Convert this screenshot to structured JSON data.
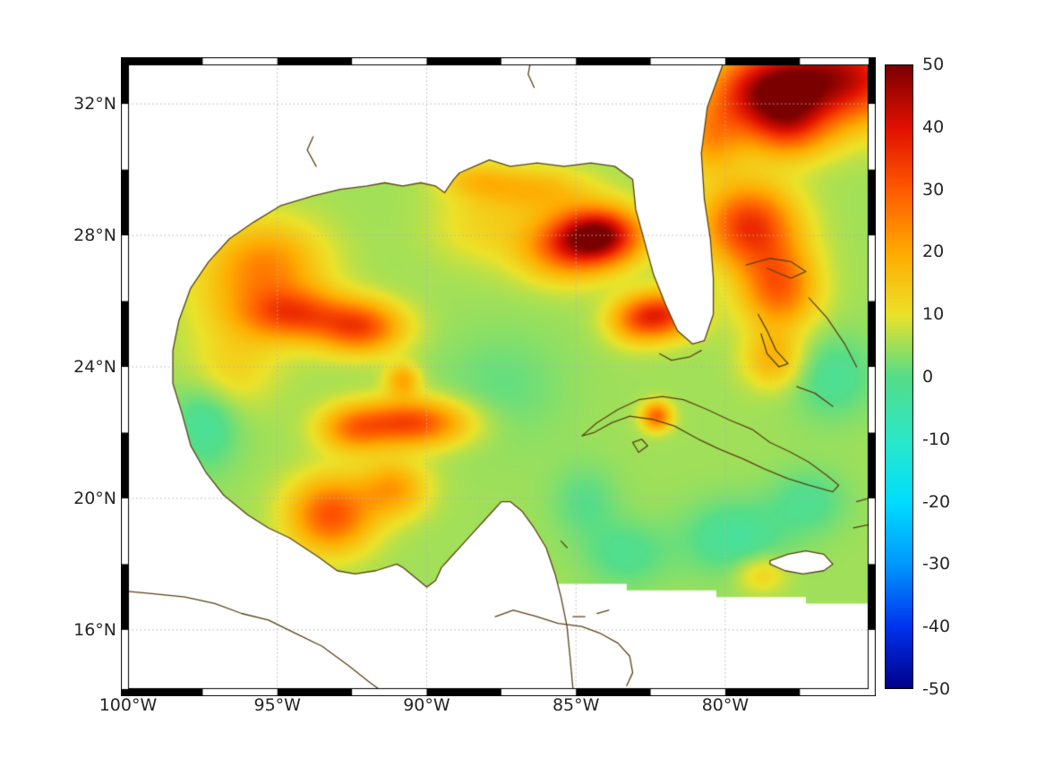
{
  "chart_data": {
    "type": "heatmap",
    "title": "",
    "xlabel": "",
    "ylabel": "",
    "lon_range": [
      -100,
      -75.2
    ],
    "lat_range": [
      14.2,
      33.2
    ],
    "grid": "dotted",
    "x_axis": {
      "ticks": [
        {
          "value": -100,
          "label": "100°W"
        },
        {
          "value": -95,
          "label": "95°W"
        },
        {
          "value": -90,
          "label": "90°W"
        },
        {
          "value": -85,
          "label": "85°W"
        },
        {
          "value": -80,
          "label": "80°W"
        }
      ]
    },
    "y_axis": {
      "ticks": [
        {
          "value": 32,
          "label": "32°N"
        },
        {
          "value": 28,
          "label": "28°N"
        },
        {
          "value": 24,
          "label": "24°N"
        },
        {
          "value": 20,
          "label": "20°N"
        },
        {
          "value": 16,
          "label": "16°N"
        }
      ]
    },
    "colorbar": {
      "min": -50,
      "max": 50,
      "ticks": [
        {
          "value": 50,
          "label": "50"
        },
        {
          "value": 40,
          "label": "40"
        },
        {
          "value": 30,
          "label": "30"
        },
        {
          "value": 20,
          "label": "20"
        },
        {
          "value": 10,
          "label": "10"
        },
        {
          "value": 0,
          "label": "0"
        },
        {
          "value": -10,
          "label": "-10"
        },
        {
          "value": -20,
          "label": "-20"
        },
        {
          "value": -30,
          "label": "-30"
        },
        {
          "value": -40,
          "label": "-40"
        },
        {
          "value": -50,
          "label": "-50"
        }
      ]
    },
    "colormap": {
      "stops": [
        [
          -50,
          "#000088"
        ],
        [
          -40,
          "#0033ee"
        ],
        [
          -30,
          "#0099ff"
        ],
        [
          -20,
          "#00ddff"
        ],
        [
          -10,
          "#2ce8c8"
        ],
        [
          0,
          "#55dd88"
        ],
        [
          10,
          "#ece229"
        ],
        [
          20,
          "#ffaa00"
        ],
        [
          30,
          "#ff5a00"
        ],
        [
          40,
          "#e01000"
        ],
        [
          50,
          "#7a0000"
        ]
      ]
    },
    "colors": {
      "coastline": "#5a4214",
      "grid": "#b4b4b4",
      "frame": "#000000",
      "background": "#ffffff",
      "tick_text": "#262626"
    },
    "base_value": 5,
    "blob_format": [
      "lon",
      "lat",
      "amplitude",
      "sigma_lon_deg",
      "sigma_lat_deg"
    ],
    "blobs": [
      [
        -76.4,
        32.8,
        40,
        2.0,
        1.0
      ],
      [
        -78.8,
        32.3,
        24,
        1.2,
        0.8
      ],
      [
        -77.9,
        31.3,
        20,
        1.0,
        0.7
      ],
      [
        -80.5,
        31.0,
        16,
        0.8,
        0.8
      ],
      [
        -84.2,
        28.0,
        40,
        1.0,
        0.6
      ],
      [
        -85.4,
        27.6,
        20,
        1.1,
        0.7
      ],
      [
        -79.2,
        28.3,
        30,
        1.1,
        0.9
      ],
      [
        -78.2,
        26.4,
        24,
        0.9,
        0.9
      ],
      [
        -82.0,
        25.6,
        26,
        0.8,
        0.5
      ],
      [
        -83.0,
        25.4,
        16,
        0.7,
        0.5
      ],
      [
        -94.4,
        25.6,
        22,
        1.2,
        0.55
      ],
      [
        -92.2,
        25.2,
        26,
        1.0,
        0.55
      ],
      [
        -90.8,
        23.6,
        15,
        0.4,
        0.35
      ],
      [
        -90.5,
        22.3,
        28,
        1.3,
        0.5
      ],
      [
        -92.5,
        22.1,
        16,
        0.8,
        0.5
      ],
      [
        -91.1,
        20.3,
        16,
        0.8,
        0.6
      ],
      [
        -93.2,
        19.5,
        26,
        1.0,
        0.8
      ],
      [
        -95.3,
        27.2,
        14,
        1.3,
        0.9
      ],
      [
        -95.9,
        26.1,
        9,
        1.5,
        1.2
      ],
      [
        -96.6,
        23.8,
        7,
        1.0,
        0.8
      ],
      [
        -86.3,
        29.4,
        12,
        1.3,
        0.5
      ],
      [
        -88.4,
        29.7,
        9,
        0.9,
        0.4
      ],
      [
        -88.1,
        28.3,
        7,
        1.2,
        0.8
      ],
      [
        -82.3,
        22.5,
        24,
        0.35,
        0.3
      ],
      [
        -78.4,
        24.2,
        13,
        0.7,
        0.6
      ],
      [
        -78.8,
        17.7,
        9,
        0.6,
        0.4
      ],
      [
        -97.4,
        22.3,
        -8,
        0.8,
        1.0
      ],
      [
        -79.7,
        18.8,
        -8,
        1.2,
        0.8
      ],
      [
        -83.3,
        18.3,
        -6,
        1.0,
        0.7
      ],
      [
        -77.2,
        19.9,
        -6,
        0.9,
        0.7
      ],
      [
        -76.4,
        23.7,
        -7,
        1.0,
        0.9
      ],
      [
        -87.5,
        23.4,
        -4,
        1.5,
        1.2
      ],
      [
        -84.7,
        19.9,
        -5,
        0.8,
        0.8
      ]
    ],
    "coastlines": [
      {
        "name": "gulf-coast",
        "points": [
          [
            -80.0,
            33.4
          ],
          [
            -80.6,
            31.9
          ],
          [
            -80.8,
            30.5
          ],
          [
            -80.7,
            29.1
          ],
          [
            -80.5,
            27.9
          ],
          [
            -80.4,
            26.7
          ],
          [
            -80.4,
            25.6
          ],
          [
            -80.7,
            24.8
          ],
          [
            -81.1,
            24.7
          ],
          [
            -81.6,
            25.1
          ],
          [
            -82.0,
            25.9
          ],
          [
            -82.4,
            26.8
          ],
          [
            -82.7,
            27.8
          ],
          [
            -83.0,
            28.8
          ],
          [
            -83.1,
            29.7
          ],
          [
            -83.7,
            30.1
          ],
          [
            -84.5,
            30.2
          ],
          [
            -85.4,
            30.1
          ],
          [
            -86.3,
            30.2
          ],
          [
            -87.2,
            30.1
          ],
          [
            -87.9,
            30.3
          ],
          [
            -88.4,
            30.1
          ],
          [
            -88.9,
            29.9
          ],
          [
            -89.1,
            29.7
          ],
          [
            -89.4,
            29.3
          ],
          [
            -89.7,
            29.5
          ],
          [
            -90.2,
            29.6
          ],
          [
            -90.8,
            29.5
          ],
          [
            -91.4,
            29.6
          ],
          [
            -92.0,
            29.5
          ],
          [
            -92.9,
            29.4
          ],
          [
            -93.8,
            29.2
          ],
          [
            -94.9,
            28.9
          ],
          [
            -95.8,
            28.4
          ],
          [
            -96.6,
            27.9
          ],
          [
            -97.3,
            27.2
          ],
          [
            -97.9,
            26.4
          ],
          [
            -98.3,
            25.4
          ],
          [
            -98.5,
            24.5
          ],
          [
            -98.5,
            23.5
          ],
          [
            -98.2,
            22.6
          ],
          [
            -97.9,
            21.6
          ],
          [
            -97.4,
            20.8
          ],
          [
            -96.8,
            20.1
          ],
          [
            -96.0,
            19.5
          ],
          [
            -95.3,
            19.1
          ],
          [
            -94.6,
            18.8
          ],
          [
            -94.1,
            18.5
          ],
          [
            -93.6,
            18.2
          ],
          [
            -93.0,
            17.8
          ],
          [
            -92.4,
            17.7
          ],
          [
            -91.7,
            17.8
          ],
          [
            -91.0,
            18.0
          ],
          [
            -90.8,
            17.9
          ],
          [
            -90.4,
            17.6
          ],
          [
            -90.0,
            17.3
          ],
          [
            -89.7,
            17.5
          ],
          [
            -89.5,
            17.9
          ],
          [
            -89.2,
            18.2
          ],
          [
            -88.8,
            18.6
          ],
          [
            -88.4,
            19.0
          ],
          [
            -88.0,
            19.4
          ],
          [
            -87.7,
            19.7
          ],
          [
            -87.5,
            19.9
          ],
          [
            -87.2,
            19.9
          ],
          [
            -86.8,
            19.6
          ],
          [
            -86.4,
            19.1
          ],
          [
            -86.0,
            18.5
          ],
          [
            -85.7,
            17.7
          ],
          [
            -85.5,
            17.0
          ],
          [
            -85.3,
            16.1
          ],
          [
            -85.2,
            15.2
          ],
          [
            -85.1,
            14.2
          ]
        ]
      },
      {
        "name": "cuba",
        "points": [
          [
            -84.8,
            21.9
          ],
          [
            -84.3,
            22.3
          ],
          [
            -83.6,
            22.7
          ],
          [
            -82.9,
            23.0
          ],
          [
            -82.1,
            23.1
          ],
          [
            -81.4,
            23.0
          ],
          [
            -80.6,
            22.7
          ],
          [
            -79.9,
            22.4
          ],
          [
            -79.1,
            22.1
          ],
          [
            -78.5,
            21.7
          ],
          [
            -77.8,
            21.4
          ],
          [
            -77.2,
            21.1
          ],
          [
            -76.6,
            20.7
          ],
          [
            -76.2,
            20.4
          ],
          [
            -76.4,
            20.2
          ],
          [
            -77.2,
            20.4
          ],
          [
            -77.9,
            20.6
          ],
          [
            -78.7,
            20.9
          ],
          [
            -79.4,
            21.2
          ],
          [
            -80.2,
            21.5
          ],
          [
            -80.9,
            21.8
          ],
          [
            -81.7,
            22.2
          ],
          [
            -82.4,
            22.4
          ],
          [
            -83.2,
            22.5
          ],
          [
            -83.8,
            22.3
          ],
          [
            -84.4,
            22.0
          ],
          [
            -84.8,
            21.9
          ]
        ]
      },
      {
        "name": "isle-of-youth",
        "points": [
          [
            -83.1,
            21.7
          ],
          [
            -82.8,
            21.8
          ],
          [
            -82.6,
            21.6
          ],
          [
            -82.9,
            21.4
          ],
          [
            -83.1,
            21.7
          ]
        ]
      },
      {
        "name": "bahamas-grand",
        "points": [
          [
            -79.3,
            27.1
          ],
          [
            -78.5,
            27.3
          ],
          [
            -77.8,
            27.2
          ],
          [
            -77.3,
            26.9
          ],
          [
            -77.8,
            26.7
          ],
          [
            -78.6,
            27.0
          ]
        ]
      },
      {
        "name": "bahamas-andros",
        "points": [
          [
            -78.9,
            25.6
          ],
          [
            -78.6,
            25.1
          ],
          [
            -78.3,
            24.5
          ],
          [
            -77.9,
            24.1
          ],
          [
            -78.2,
            24.0
          ],
          [
            -78.6,
            24.4
          ],
          [
            -78.8,
            25.0
          ]
        ]
      },
      {
        "name": "bahamas-east",
        "points": [
          [
            -77.2,
            26.1
          ],
          [
            -76.6,
            25.5
          ],
          [
            -76.0,
            24.7
          ],
          [
            -75.6,
            24.0
          ]
        ]
      },
      {
        "name": "bahamas-south",
        "points": [
          [
            -77.6,
            23.4
          ],
          [
            -77.0,
            23.2
          ],
          [
            -76.4,
            22.8
          ]
        ]
      },
      {
        "name": "hispaniola-tip",
        "points": [
          [
            -75.6,
            19.9
          ],
          [
            -75.2,
            20.0
          ],
          [
            -75.2,
            19.2
          ],
          [
            -75.7,
            19.1
          ]
        ]
      },
      {
        "name": "jamaica",
        "points": [
          [
            -78.5,
            18.1
          ],
          [
            -77.9,
            18.3
          ],
          [
            -77.3,
            18.4
          ],
          [
            -76.7,
            18.3
          ],
          [
            -76.4,
            18.0
          ],
          [
            -76.7,
            17.8
          ],
          [
            -77.4,
            17.7
          ],
          [
            -78.0,
            17.8
          ],
          [
            -78.5,
            18.0
          ],
          [
            -78.5,
            18.1
          ]
        ]
      },
      {
        "name": "honduras-coast",
        "points": [
          [
            -87.7,
            16.4
          ],
          [
            -87.1,
            16.6
          ],
          [
            -86.3,
            16.4
          ],
          [
            -85.6,
            16.2
          ],
          [
            -84.8,
            16.1
          ],
          [
            -84.2,
            15.9
          ],
          [
            -83.6,
            15.6
          ],
          [
            -83.2,
            15.2
          ],
          [
            -83.1,
            14.7
          ],
          [
            -83.3,
            14.3
          ]
        ]
      },
      {
        "name": "bay-islands-1",
        "points": [
          [
            -85.1,
            16.4
          ],
          [
            -84.7,
            16.4
          ]
        ]
      },
      {
        "name": "bay-islands-2",
        "points": [
          [
            -84.3,
            16.5
          ],
          [
            -83.9,
            16.6
          ]
        ]
      },
      {
        "name": "cozumel",
        "points": [
          [
            -85.5,
            18.7
          ],
          [
            -85.3,
            18.5
          ]
        ]
      },
      {
        "name": "florida-keys",
        "points": [
          [
            -80.8,
            24.5
          ],
          [
            -81.2,
            24.3
          ],
          [
            -81.8,
            24.2
          ],
          [
            -82.2,
            24.4
          ]
        ]
      },
      {
        "name": "mexico-pacific",
        "points": [
          [
            -100.3,
            17.2
          ],
          [
            -99.2,
            17.1
          ],
          [
            -98.1,
            17.0
          ],
          [
            -97.1,
            16.8
          ],
          [
            -96.2,
            16.5
          ],
          [
            -95.3,
            16.3
          ],
          [
            -94.4,
            15.9
          ],
          [
            -93.5,
            15.5
          ],
          [
            -92.6,
            14.9
          ],
          [
            -91.9,
            14.4
          ],
          [
            -91.6,
            14.2
          ]
        ]
      },
      {
        "name": "river-1",
        "points": [
          [
            -86.5,
            33.4
          ],
          [
            -86.6,
            32.9
          ],
          [
            -86.4,
            32.5
          ]
        ]
      },
      {
        "name": "river-2",
        "points": [
          [
            -93.8,
            31.0
          ],
          [
            -94.0,
            30.6
          ],
          [
            -93.7,
            30.1
          ]
        ]
      }
    ],
    "no_data_polygons": [
      {
        "name": "mainland",
        "coastline": "gulf-coast",
        "close": [
          [
            -100.4,
            14.0
          ],
          [
            -100.4,
            33.5
          ]
        ]
      },
      {
        "name": "southeast-no-data",
        "points": [
          [
            -85.8,
            17.4
          ],
          [
            -83.3,
            17.4
          ],
          [
            -83.3,
            17.2
          ],
          [
            -80.3,
            17.2
          ],
          [
            -80.3,
            17.0
          ],
          [
            -77.3,
            17.0
          ],
          [
            -77.3,
            16.8
          ],
          [
            -75.0,
            16.8
          ],
          [
            -75.0,
            14.0
          ],
          [
            -86.0,
            14.0
          ]
        ]
      },
      {
        "name": "jamaica",
        "coastline": "jamaica"
      }
    ]
  }
}
